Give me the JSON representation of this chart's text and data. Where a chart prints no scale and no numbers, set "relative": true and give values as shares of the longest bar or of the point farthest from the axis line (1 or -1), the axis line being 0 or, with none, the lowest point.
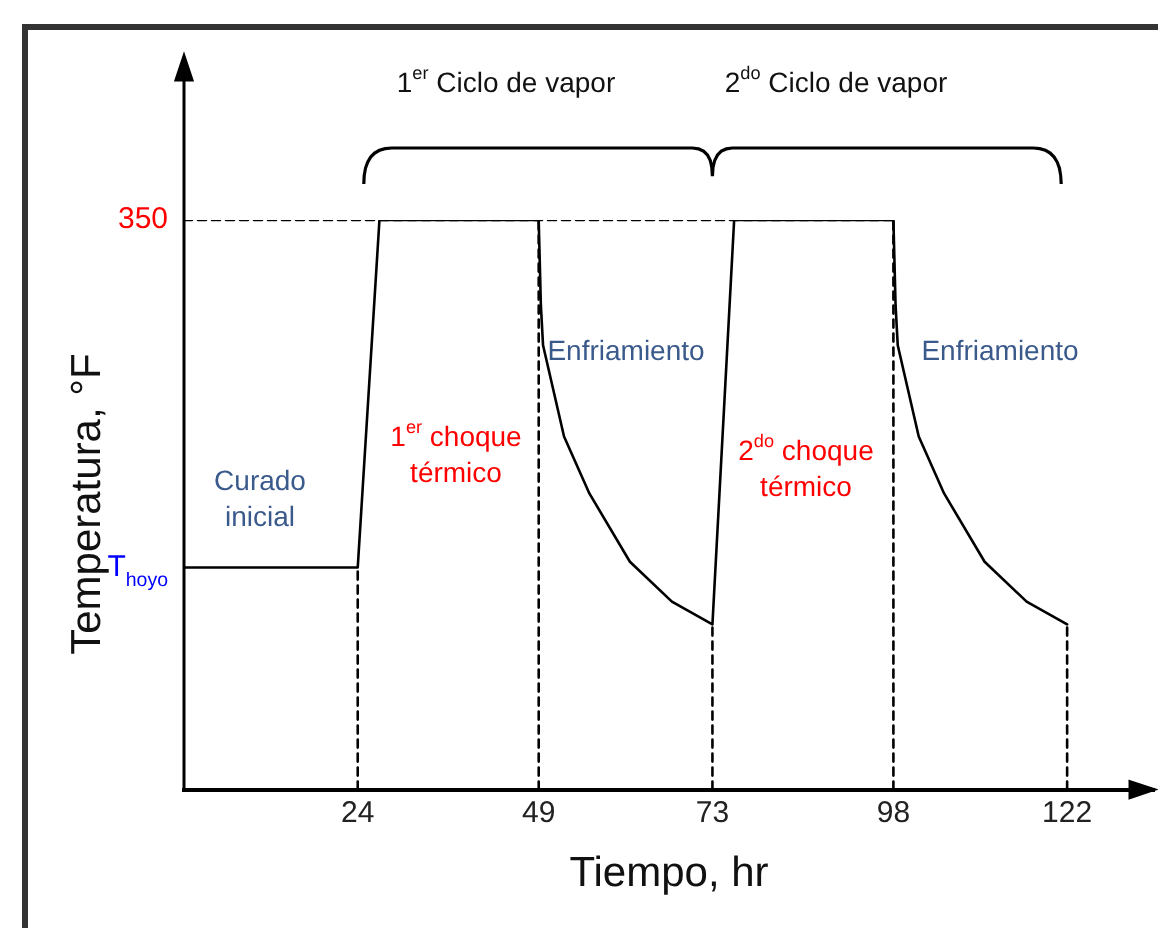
{
  "chart_data": {
    "type": "line",
    "relative": true,
    "xlabel": "Tiempo, hr",
    "ylabel": "Temperatura, °F",
    "xlim": [
      0,
      134
    ],
    "xticks": [
      24,
      49,
      73,
      98,
      122
    ],
    "grid": false,
    "legend": false,
    "marker": "none",
    "series": [
      {
        "color": "#000000",
        "line_style": "solid",
        "x": [
          0,
          24,
          27,
          49,
          49.3,
          49.6,
          52.5,
          56,
          61.6,
          67.4,
          73,
          76,
          98,
          98.3,
          98.6,
          101.5,
          105,
          110.6,
          116.4,
          122
        ],
        "values": [
          0.39,
          0.39,
          1,
          1,
          0.85,
          0.78,
          0.62,
          0.52,
          0.4,
          0.33,
          0.29,
          1,
          1,
          0.85,
          0.78,
          0.62,
          0.52,
          0.4,
          0.33,
          0.29
        ]
      },
      {
        "color": "#000000",
        "line_style": "dashed",
        "x": [
          0,
          98
        ],
        "values": [
          1,
          1
        ]
      },
      {
        "color": "#000000",
        "line_style": "dashed",
        "x": [
          24,
          24
        ],
        "values": [
          0,
          0.39
        ]
      },
      {
        "color": "#000000",
        "line_style": "dashed",
        "x": [
          49,
          49
        ],
        "values": [
          0,
          1
        ]
      },
      {
        "color": "#000000",
        "line_style": "dashed",
        "x": [
          73,
          73
        ],
        "values": [
          0,
          0.29
        ]
      },
      {
        "color": "#000000",
        "line_style": "dashed",
        "x": [
          98,
          98
        ],
        "values": [
          0,
          1
        ]
      },
      {
        "color": "#000000",
        "line_style": "dashed",
        "x": [
          122,
          122
        ],
        "values": [
          0,
          0.29
        ]
      }
    ],
    "annotations": [
      {
        "text": "350",
        "x": 0,
        "y": 1
      },
      {
        "text": "T$_{hoyo}$",
        "x": 0,
        "y": 0.39
      },
      "Curado\ninicial",
      "1$^{er}$ choque\ntérmico",
      "Enfriamiento",
      "2$^{do}$ choque\ntérmico",
      "Enfriamiento",
      "1$^{er}$ Ciclo de vapor",
      "2$^{do}$ Ciclo de vapor"
    ]
  }
}
